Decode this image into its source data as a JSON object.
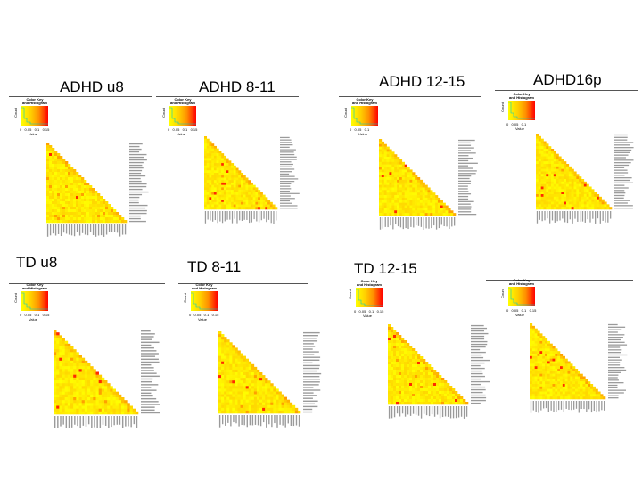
{
  "chart_data": {
    "type": "heatmap",
    "panels": [
      {
        "title": "ADHD u8",
        "scale": [
          "0",
          "0.05",
          "0.1",
          "0.15"
        ]
      },
      {
        "title": "ADHD 8-11",
        "scale": [
          "0",
          "0.05",
          "0.1",
          "0.15"
        ]
      },
      {
        "title": "ADHD 12-15",
        "scale": [
          "0",
          "0.05",
          "0.1"
        ]
      },
      {
        "title": "ADHD16p",
        "scale": [
          "0",
          "0.05",
          "0.1"
        ]
      },
      {
        "title": "TD u8",
        "scale": [
          "0",
          "0.05",
          "0.1",
          "0.15"
        ]
      },
      {
        "title": "TD 8-11",
        "scale": [
          "0",
          "0.05",
          "0.1",
          "0.15"
        ]
      },
      {
        "title": "TD 12-15",
        "scale": [
          "0",
          "0.05",
          "0.1",
          "0.15"
        ]
      },
      {
        "title": "",
        "scale": [
          "0",
          "0.05",
          "0.1",
          "0.15"
        ]
      }
    ],
    "color_key": {
      "title_line1": "Color Key",
      "title_line2": "and Histogram",
      "count_label": "Count",
      "value_label": "Value"
    },
    "colors": {
      "low": "#ffff00",
      "mid": "#ff9000",
      "high": "#ff0000"
    }
  }
}
